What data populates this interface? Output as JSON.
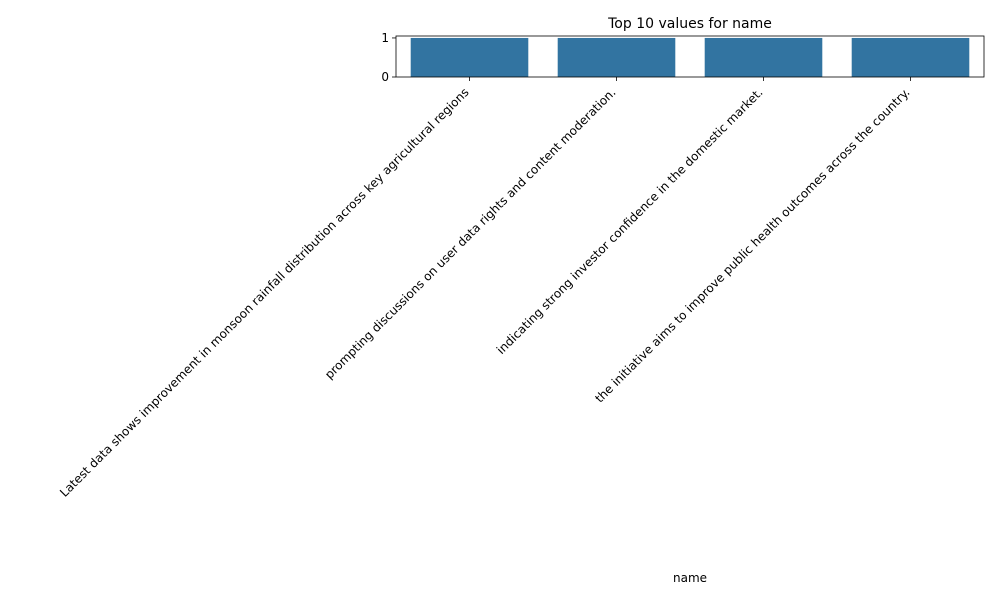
{
  "chart_data": {
    "type": "bar",
    "title": "Top 10 values for name",
    "xlabel": "name",
    "ylabel": "",
    "categories": [
      "Latest data shows improvement in monsoon rainfall distribution across key agricultural regions",
      "prompting discussions on user data rights and content moderation.",
      "indicating strong investor confidence in the domestic market.",
      "the initiative aims to improve public health outcomes across the country."
    ],
    "values": [
      1,
      1,
      1,
      1
    ],
    "ylim": [
      0,
      1.05
    ],
    "yticks": [
      "0",
      "1"
    ],
    "grid": false,
    "bar_color": "#3274a1"
  }
}
